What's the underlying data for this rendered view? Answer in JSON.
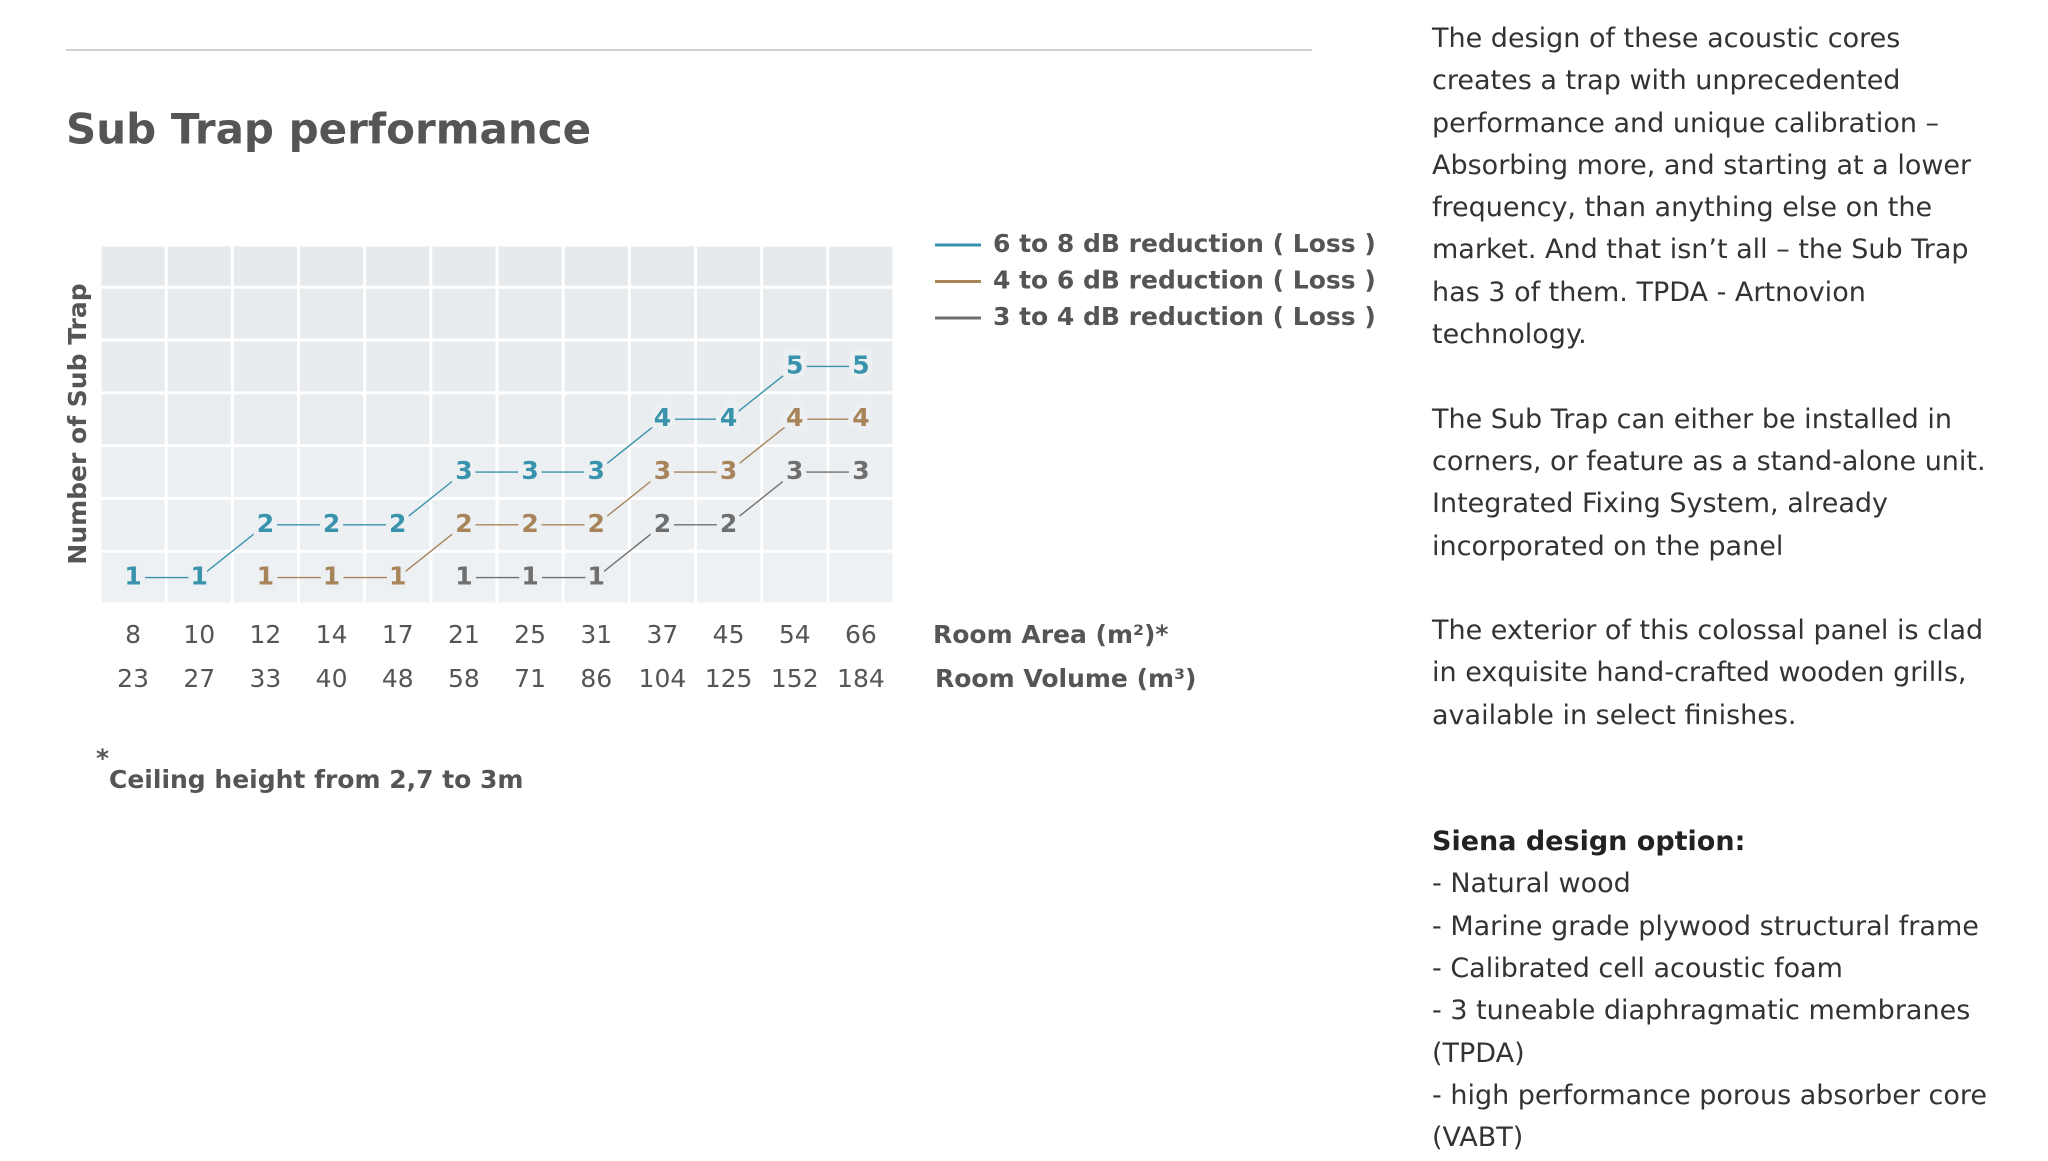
{
  "chart_data": {
    "type": "line",
    "title": "Sub Trap performance",
    "ylabel": "Number of Sub Trap",
    "categories": [
      "8",
      "10",
      "12",
      "14",
      "17",
      "21",
      "25",
      "31",
      "37",
      "45",
      "54",
      "66"
    ],
    "categories2": [
      "23",
      "27",
      "33",
      "40",
      "48",
      "58",
      "71",
      "86",
      "104",
      "125",
      "152",
      "184"
    ],
    "xlabel": "Room Area (m²)*",
    "xlabel2": "Room Volume (m³)",
    "ylim": [
      0.5,
      7.3
    ],
    "series": [
      {
        "name": "6 to 8 dB reduction ( Loss )",
        "color": "#3a93ac",
        "values": [
          1,
          1,
          2,
          2,
          2,
          3,
          3,
          3,
          4,
          4,
          5,
          5
        ]
      },
      {
        "name": "4 to 6 dB reduction ( Loss )",
        "color": "#a8845a",
        "values": [
          null,
          null,
          1,
          1,
          1,
          2,
          2,
          2,
          3,
          3,
          4,
          4
        ]
      },
      {
        "name": "3 to 4 dB reduction ( Loss )",
        "color": "#6f6f6f",
        "values": [
          null,
          null,
          null,
          null,
          null,
          1,
          1,
          1,
          2,
          2,
          3,
          3
        ]
      }
    ],
    "footnote_mark": "*",
    "footnote": "Ceiling height from 2,7 to 3m"
  },
  "side": {
    "paragraphs": [
      "The design of these acoustic cores creates a trap with unprecedented performance and unique calibration – Absorbing more, and starting at a lower frequency, than anything else on the market. And that isn’t all – the Sub Trap has 3 of them. TPDA - Artnovion technology.",
      "The Sub Trap can either be installed in corners, or feature as a stand-alone unit. Integrated Fixing System, already incorporated on the panel",
      "The exterior of this colossal panel is clad in exquisite hand-crafted wooden grills, available in select finishes."
    ],
    "heading": "Siena design option:",
    "items": [
      "- Natural wood",
      "- Marine grade plywood structural frame",
      "- Calibrated cell acoustic foam",
      "- 3 tuneable diaphragmatic membranes (TPDA)",
      "- high performance porous absorber core (VABT)"
    ]
  }
}
